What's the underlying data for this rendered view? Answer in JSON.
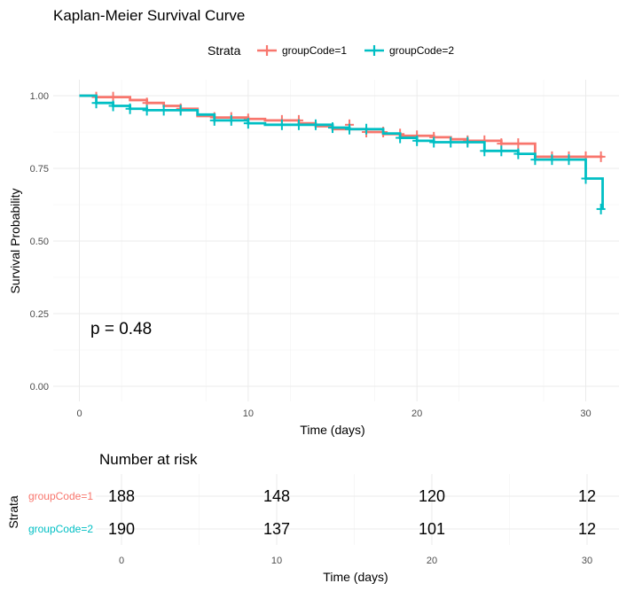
{
  "chart_data": [
    {
      "type": "line",
      "title": "Kaplan-Meier Survival Curve",
      "xlabel": "Time (days)",
      "ylabel": "Survival Probability",
      "xlim": [
        0,
        31
      ],
      "ylim": [
        0,
        1
      ],
      "x_ticks": [
        0,
        10,
        20,
        30
      ],
      "y_ticks": [
        0,
        0.25,
        0.5,
        0.75,
        1.0
      ],
      "x_tick_labels": [
        "0",
        "10",
        "20",
        "30"
      ],
      "y_tick_labels": [
        "0.00",
        "0.25",
        "0.50",
        "0.75",
        "1.00"
      ],
      "grid": true,
      "legend": {
        "title": "Strata",
        "position": "top"
      },
      "annotation": "p = 0.48",
      "series": [
        {
          "name": "groupCode=1",
          "color": "#F8766D",
          "steps": [
            [
              0,
              1.0
            ],
            [
              1,
              0.995
            ],
            [
              3,
              0.985
            ],
            [
              4,
              0.975
            ],
            [
              5,
              0.965
            ],
            [
              6,
              0.955
            ],
            [
              7,
              0.93
            ],
            [
              8,
              0.925
            ],
            [
              10,
              0.92
            ],
            [
              11,
              0.915
            ],
            [
              13,
              0.905
            ],
            [
              14,
              0.895
            ],
            [
              15,
              0.885
            ],
            [
              17,
              0.875
            ],
            [
              18,
              0.868
            ],
            [
              19,
              0.862
            ],
            [
              21,
              0.857
            ],
            [
              22,
              0.85
            ],
            [
              23,
              0.845
            ],
            [
              25,
              0.835
            ],
            [
              27,
              0.79
            ],
            [
              31,
              0.79
            ]
          ],
          "censor_x": [
            1,
            2,
            4,
            6,
            8,
            9,
            10,
            12,
            13,
            16,
            17,
            18,
            19,
            20,
            21,
            23,
            24,
            25,
            26,
            28,
            29,
            30,
            31
          ],
          "censor_y": [
            0.995,
            0.995,
            0.975,
            0.955,
            0.925,
            0.925,
            0.92,
            0.915,
            0.915,
            0.9,
            0.875,
            0.875,
            0.868,
            0.862,
            0.857,
            0.845,
            0.845,
            0.835,
            0.835,
            0.79,
            0.79,
            0.79,
            0.79
          ]
        },
        {
          "name": "groupCode=2",
          "color": "#00BFC4",
          "steps": [
            [
              0,
              1.0
            ],
            [
              1,
              0.975
            ],
            [
              2,
              0.965
            ],
            [
              3,
              0.955
            ],
            [
              4,
              0.95
            ],
            [
              7,
              0.935
            ],
            [
              8,
              0.915
            ],
            [
              10,
              0.905
            ],
            [
              11,
              0.9
            ],
            [
              15,
              0.89
            ],
            [
              16,
              0.885
            ],
            [
              18,
              0.87
            ],
            [
              19,
              0.855
            ],
            [
              20,
              0.845
            ],
            [
              21,
              0.84
            ],
            [
              24,
              0.81
            ],
            [
              26,
              0.8
            ],
            [
              27,
              0.78
            ],
            [
              30,
              0.715
            ],
            [
              31,
              0.61
            ]
          ],
          "censor_x": [
            1,
            2,
            3,
            4,
            5,
            6,
            8,
            9,
            10,
            12,
            13,
            14,
            15,
            16,
            17,
            19,
            20,
            21,
            22,
            23,
            24,
            25,
            26,
            27,
            28,
            29,
            30,
            31
          ],
          "censor_y": [
            0.975,
            0.965,
            0.955,
            0.95,
            0.95,
            0.95,
            0.915,
            0.915,
            0.905,
            0.9,
            0.9,
            0.9,
            0.89,
            0.885,
            0.885,
            0.855,
            0.845,
            0.84,
            0.84,
            0.84,
            0.81,
            0.81,
            0.8,
            0.78,
            0.78,
            0.78,
            0.715,
            0.61
          ]
        }
      ]
    },
    {
      "type": "table",
      "title": "Number at risk",
      "xlabel": "Time (days)",
      "ylabel": "Strata",
      "x_ticks": [
        0,
        10,
        20,
        30
      ],
      "x_tick_labels": [
        "0",
        "10",
        "20",
        "30"
      ],
      "rows": [
        {
          "name": "groupCode=1",
          "color": "#F8766D",
          "values": [
            188,
            148,
            120,
            12
          ]
        },
        {
          "name": "groupCode=2",
          "color": "#00BFC4",
          "values": [
            190,
            137,
            101,
            12
          ]
        }
      ]
    }
  ]
}
